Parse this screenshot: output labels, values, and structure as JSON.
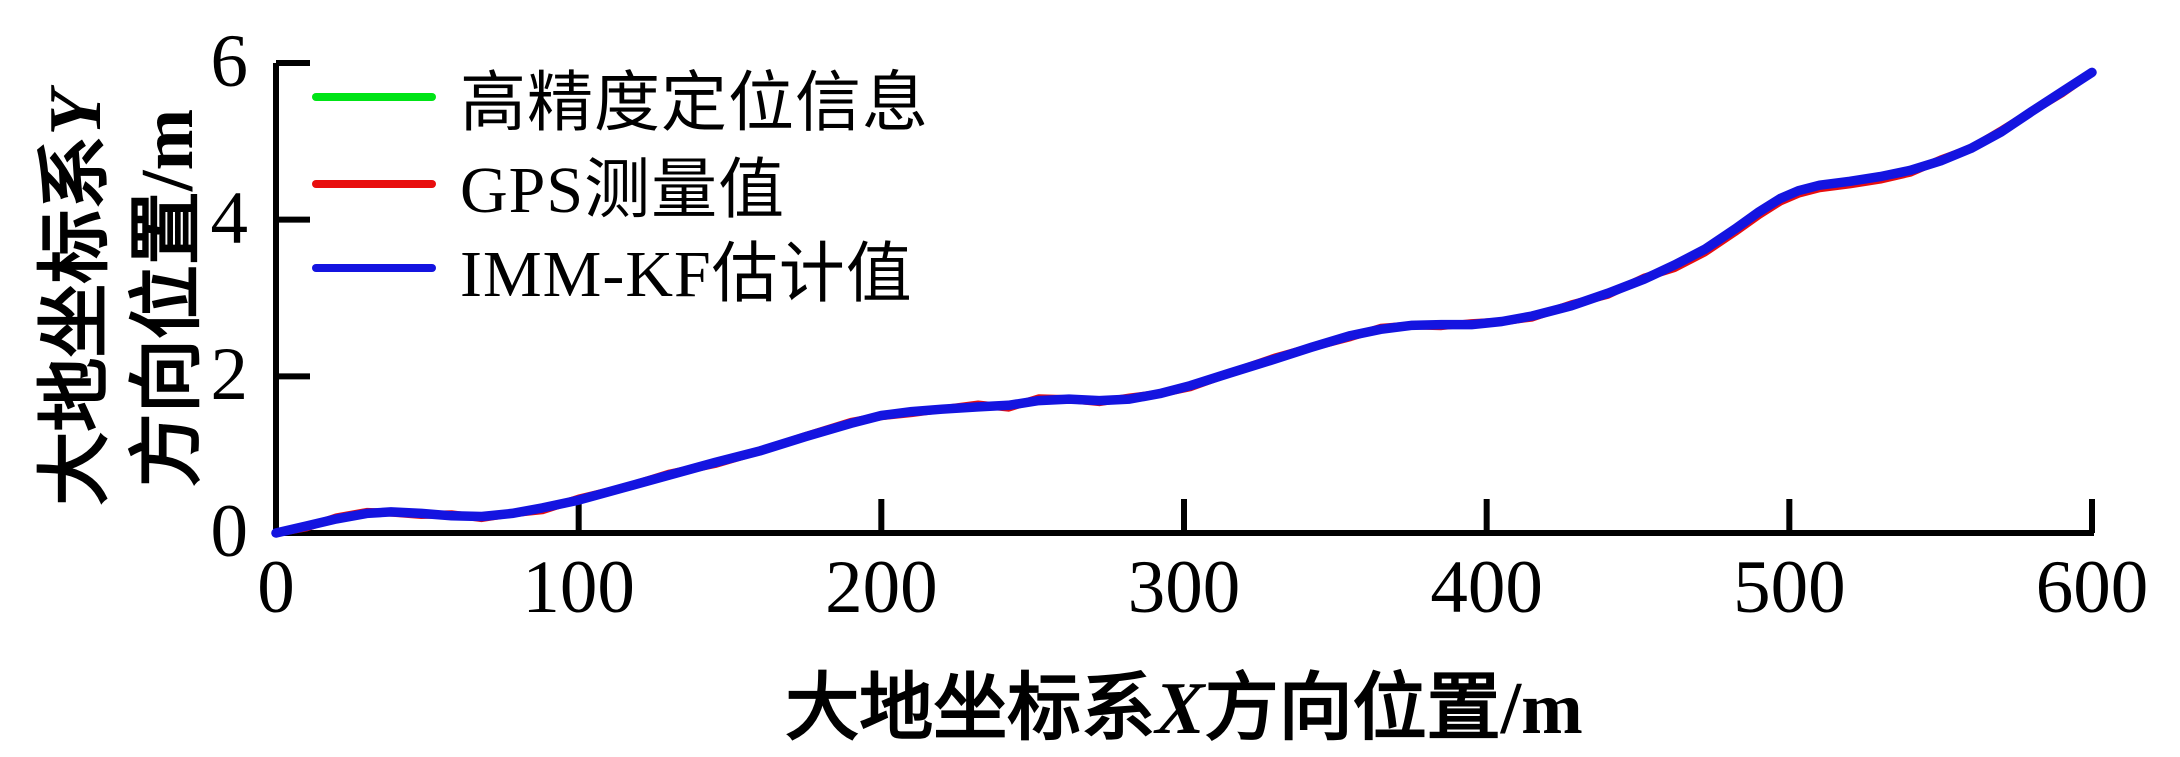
{
  "chart_data": {
    "type": "line",
    "title": "",
    "xlabel": {
      "prefix": "大地坐标系",
      "var": "X",
      "suffix": "方向位置/m"
    },
    "ylabel": {
      "line1_prefix": "大地坐标系",
      "line1_var": "Y",
      "line2": "方向位置/m"
    },
    "x_ticks": [
      0,
      100,
      200,
      300,
      400,
      500,
      600
    ],
    "y_ticks": [
      0,
      2,
      4,
      6
    ],
    "xlim": [
      0,
      600
    ],
    "ylim": [
      0,
      6
    ],
    "grid": false,
    "legend_position": "top-left-inside",
    "axis_color": "#000000",
    "series": [
      {
        "name": "高精度定位信息",
        "color": "#00e416",
        "points": [
          [
            0,
            0
          ],
          [
            10,
            0.09
          ],
          [
            20,
            0.18
          ],
          [
            30,
            0.25
          ],
          [
            38,
            0.27
          ],
          [
            48,
            0.25
          ],
          [
            58,
            0.22
          ],
          [
            68,
            0.21
          ],
          [
            78,
            0.25
          ],
          [
            88,
            0.32
          ],
          [
            100,
            0.42
          ],
          [
            115,
            0.58
          ],
          [
            130,
            0.74
          ],
          [
            145,
            0.9
          ],
          [
            160,
            1.05
          ],
          [
            175,
            1.23
          ],
          [
            190,
            1.4
          ],
          [
            200,
            1.5
          ],
          [
            210,
            1.55
          ],
          [
            220,
            1.58
          ],
          [
            232,
            1.61
          ],
          [
            242,
            1.63
          ],
          [
            252,
            1.69
          ],
          [
            262,
            1.71
          ],
          [
            272,
            1.69
          ],
          [
            282,
            1.71
          ],
          [
            292,
            1.78
          ],
          [
            302,
            1.88
          ],
          [
            315,
            2.04
          ],
          [
            330,
            2.22
          ],
          [
            342,
            2.37
          ],
          [
            355,
            2.52
          ],
          [
            365,
            2.6
          ],
          [
            375,
            2.65
          ],
          [
            385,
            2.66
          ],
          [
            395,
            2.66
          ],
          [
            405,
            2.7
          ],
          [
            415,
            2.77
          ],
          [
            428,
            2.9
          ],
          [
            440,
            3.06
          ],
          [
            452,
            3.24
          ],
          [
            462,
            3.42
          ],
          [
            472,
            3.62
          ],
          [
            482,
            3.88
          ],
          [
            490,
            4.1
          ],
          [
            497,
            4.27
          ],
          [
            503,
            4.37
          ],
          [
            510,
            4.44
          ],
          [
            520,
            4.49
          ],
          [
            530,
            4.55
          ],
          [
            540,
            4.63
          ],
          [
            550,
            4.75
          ],
          [
            560,
            4.91
          ],
          [
            570,
            5.12
          ],
          [
            580,
            5.38
          ],
          [
            590,
            5.63
          ],
          [
            600,
            5.88
          ]
        ]
      },
      {
        "name": "GPS测量值",
        "color": "#e80e0e",
        "points": [
          [
            0,
            0
          ],
          [
            10,
            0.07
          ],
          [
            20,
            0.2
          ],
          [
            30,
            0.27
          ],
          [
            38,
            0.26
          ],
          [
            48,
            0.23
          ],
          [
            58,
            0.24
          ],
          [
            68,
            0.19
          ],
          [
            78,
            0.25
          ],
          [
            88,
            0.29
          ],
          [
            100,
            0.44
          ],
          [
            115,
            0.58
          ],
          [
            130,
            0.76
          ],
          [
            145,
            0.88
          ],
          [
            160,
            1.05
          ],
          [
            175,
            1.24
          ],
          [
            190,
            1.42
          ],
          [
            200,
            1.49
          ],
          [
            210,
            1.53
          ],
          [
            220,
            1.58
          ],
          [
            232,
            1.64
          ],
          [
            242,
            1.6
          ],
          [
            252,
            1.72
          ],
          [
            262,
            1.71
          ],
          [
            272,
            1.67
          ],
          [
            282,
            1.73
          ],
          [
            292,
            1.78
          ],
          [
            302,
            1.86
          ],
          [
            315,
            2.04
          ],
          [
            330,
            2.24
          ],
          [
            342,
            2.37
          ],
          [
            355,
            2.5
          ],
          [
            365,
            2.62
          ],
          [
            375,
            2.65
          ],
          [
            385,
            2.64
          ],
          [
            395,
            2.68
          ],
          [
            405,
            2.7
          ],
          [
            415,
            2.75
          ],
          [
            428,
            2.92
          ],
          [
            440,
            3.04
          ],
          [
            452,
            3.26
          ],
          [
            462,
            3.38
          ],
          [
            472,
            3.58
          ],
          [
            482,
            3.84
          ],
          [
            490,
            4.06
          ],
          [
            497,
            4.23
          ],
          [
            503,
            4.33
          ],
          [
            510,
            4.4
          ],
          [
            520,
            4.45
          ],
          [
            530,
            4.51
          ],
          [
            540,
            4.6
          ],
          [
            550,
            4.77
          ],
          [
            560,
            4.91
          ],
          [
            570,
            5.14
          ],
          [
            580,
            5.38
          ],
          [
            590,
            5.61
          ],
          [
            600,
            5.88
          ]
        ]
      },
      {
        "name": "IMM-KF估计值",
        "color": "#1414e0",
        "points": [
          [
            0,
            0
          ],
          [
            10,
            0.09
          ],
          [
            20,
            0.18
          ],
          [
            30,
            0.25
          ],
          [
            38,
            0.27
          ],
          [
            48,
            0.25
          ],
          [
            58,
            0.22
          ],
          [
            68,
            0.21
          ],
          [
            78,
            0.25
          ],
          [
            88,
            0.32
          ],
          [
            100,
            0.42
          ],
          [
            115,
            0.58
          ],
          [
            130,
            0.74
          ],
          [
            145,
            0.9
          ],
          [
            160,
            1.05
          ],
          [
            175,
            1.23
          ],
          [
            190,
            1.4
          ],
          [
            200,
            1.5
          ],
          [
            210,
            1.55
          ],
          [
            220,
            1.58
          ],
          [
            232,
            1.61
          ],
          [
            242,
            1.63
          ],
          [
            252,
            1.69
          ],
          [
            262,
            1.71
          ],
          [
            272,
            1.69
          ],
          [
            282,
            1.71
          ],
          [
            292,
            1.78
          ],
          [
            302,
            1.88
          ],
          [
            315,
            2.04
          ],
          [
            330,
            2.22
          ],
          [
            342,
            2.37
          ],
          [
            355,
            2.52
          ],
          [
            365,
            2.6
          ],
          [
            375,
            2.65
          ],
          [
            385,
            2.66
          ],
          [
            395,
            2.66
          ],
          [
            405,
            2.7
          ],
          [
            415,
            2.77
          ],
          [
            428,
            2.9
          ],
          [
            440,
            3.06
          ],
          [
            452,
            3.24
          ],
          [
            462,
            3.42
          ],
          [
            472,
            3.62
          ],
          [
            482,
            3.88
          ],
          [
            490,
            4.1
          ],
          [
            497,
            4.27
          ],
          [
            503,
            4.37
          ],
          [
            510,
            4.44
          ],
          [
            520,
            4.49
          ],
          [
            530,
            4.55
          ],
          [
            540,
            4.63
          ],
          [
            550,
            4.75
          ],
          [
            560,
            4.91
          ],
          [
            570,
            5.12
          ],
          [
            580,
            5.38
          ],
          [
            590,
            5.63
          ],
          [
            600,
            5.88
          ]
        ]
      }
    ]
  },
  "legend": {
    "items": [
      {
        "label": "高精度定位信息"
      },
      {
        "label": "GPS测量值"
      },
      {
        "label": "IMM-KF估计值"
      }
    ]
  }
}
